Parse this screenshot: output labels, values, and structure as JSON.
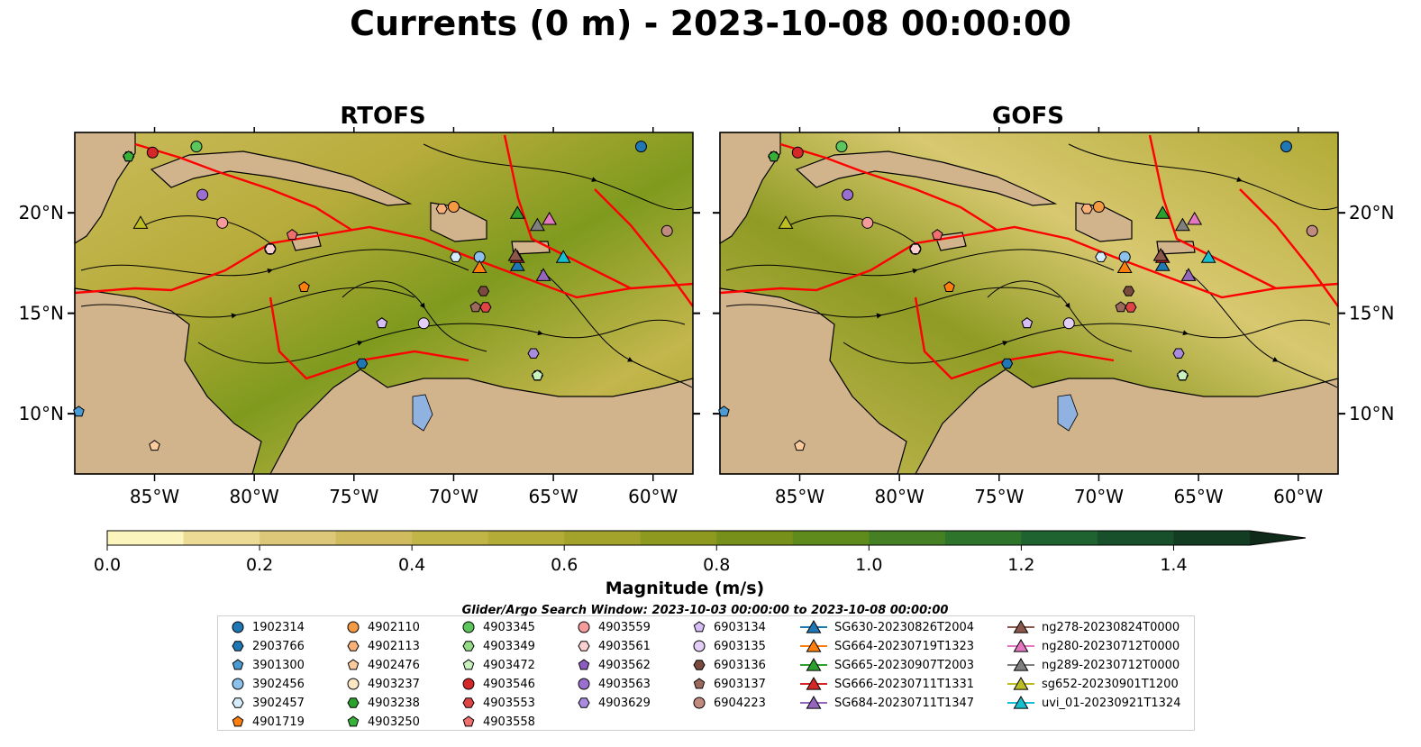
{
  "title": "Currents (0 m) - 2023-10-08 00:00:00",
  "panels": [
    {
      "title": "RTOFS"
    },
    {
      "title": "GOFS"
    }
  ],
  "axes": {
    "lon_ticks": [
      "85°W",
      "80°W",
      "75°W",
      "70°W",
      "65°W",
      "60°W"
    ],
    "lon_values": [
      -85,
      -80,
      -75,
      -70,
      -65,
      -60
    ],
    "lat_ticks": [
      "20°N",
      "15°N",
      "10°N"
    ],
    "lat_values": [
      20,
      15,
      10
    ],
    "lon_range": [
      -89,
      -58
    ],
    "lat_range": [
      7,
      24
    ]
  },
  "colorbar": {
    "label": "Magnitude (m/s)",
    "ticks": [
      "0.0",
      "0.2",
      "0.4",
      "0.6",
      "0.8",
      "1.0",
      "1.2",
      "1.4"
    ],
    "tick_values": [
      0.0,
      0.2,
      0.4,
      0.6,
      0.8,
      1.0,
      1.2,
      1.4
    ],
    "range": [
      0,
      1.5
    ],
    "extend": "max",
    "levels": 15,
    "colors": [
      "#fbf4bd",
      "#ecdb95",
      "#dcc878",
      "#d0bc5e",
      "#c2b547",
      "#b3ac37",
      "#a3a22a",
      "#8e9a1f",
      "#779019",
      "#5f8a1c",
      "#468024",
      "#2f742b",
      "#1e6330",
      "#17502a",
      "#133d22",
      "#0f2a18"
    ]
  },
  "search_window": "Glider/Argo Search Window: 2023-10-03 00:00:00 to 2023-10-08 00:00:00",
  "land_color": "#d2b48c",
  "track_color": "#ff0000",
  "legend": [
    {
      "label": "1902314",
      "marker": "circle",
      "color": "#1f77b4"
    },
    {
      "label": "2903766",
      "marker": "hexagon",
      "color": "#1f77b4"
    },
    {
      "label": "3901300",
      "marker": "pentagon",
      "color": "#4a9bd4"
    },
    {
      "label": "3902456",
      "marker": "circle",
      "color": "#8cc1ec"
    },
    {
      "label": "3902457",
      "marker": "hexagon",
      "color": "#d4ecfb"
    },
    {
      "label": "4901719",
      "marker": "pentagon",
      "color": "#ff7f0e"
    },
    {
      "label": "4902110",
      "marker": "circle",
      "color": "#f39a43"
    },
    {
      "label": "4902113",
      "marker": "hexagon",
      "color": "#f9b179"
    },
    {
      "label": "4902476",
      "marker": "pentagon",
      "color": "#fccb9d"
    },
    {
      "label": "4903237",
      "marker": "circle",
      "color": "#fde6c4"
    },
    {
      "label": "4903238",
      "marker": "hexagon",
      "color": "#2ca02c"
    },
    {
      "label": "4903250",
      "marker": "pentagon",
      "color": "#38b138"
    },
    {
      "label": "4903345",
      "marker": "circle",
      "color": "#5cc65c"
    },
    {
      "label": "4903349",
      "marker": "hexagon",
      "color": "#93db86"
    },
    {
      "label": "4903472",
      "marker": "pentagon",
      "color": "#c8f1bf"
    },
    {
      "label": "4903546",
      "marker": "circle",
      "color": "#d62728"
    },
    {
      "label": "4903553",
      "marker": "hexagon",
      "color": "#e04545"
    },
    {
      "label": "4903558",
      "marker": "pentagon",
      "color": "#f07070"
    },
    {
      "label": "4903559",
      "marker": "circle",
      "color": "#f59b9b"
    },
    {
      "label": "4903561",
      "marker": "hexagon",
      "color": "#fbd0d0"
    },
    {
      "label": "4903562",
      "marker": "pentagon",
      "color": "#8c5cbf"
    },
    {
      "label": "4903563",
      "marker": "circle",
      "color": "#9b6fd0"
    },
    {
      "label": "4903629",
      "marker": "hexagon",
      "color": "#a98be0"
    },
    {
      "label": "6903134",
      "marker": "pentagon",
      "color": "#d7bdf6"
    },
    {
      "label": "6903135",
      "marker": "circle",
      "color": "#e3cef7"
    },
    {
      "label": "6903136",
      "marker": "hexagon",
      "color": "#7a4a3e"
    },
    {
      "label": "6903137",
      "marker": "pentagon",
      "color": "#9c6a5c"
    },
    {
      "label": "6904223",
      "marker": "circle",
      "color": "#c08b7e"
    },
    {
      "label": "SG630-20230826T2004",
      "marker": "triangle",
      "color": "#1f77b4"
    },
    {
      "label": "SG664-20230719T1323",
      "marker": "triangle",
      "color": "#ff7f0e"
    },
    {
      "label": "SG665-20230907T2003",
      "marker": "triangle",
      "color": "#2ca02c"
    },
    {
      "label": "SG666-20230711T1331",
      "marker": "triangle",
      "color": "#d62728"
    },
    {
      "label": "SG684-20230711T1347",
      "marker": "triangle",
      "color": "#9467bd"
    },
    {
      "label": "ng278-20230824T0000",
      "marker": "triangle",
      "color": "#8c564b"
    },
    {
      "label": "ng280-20230712T0000",
      "marker": "triangle",
      "color": "#e377c2"
    },
    {
      "label": "ng289-20230712T0000",
      "marker": "triangle",
      "color": "#7f7f7f"
    },
    {
      "label": "sg652-20230901T1200",
      "marker": "triangle",
      "color": "#bcbd22"
    },
    {
      "label": "uvi_01-20230921T1324",
      "marker": "triangle",
      "color": "#17becf"
    }
  ],
  "platforms": [
    {
      "id": "1902314",
      "lon": -60.6,
      "lat": 23.3
    },
    {
      "id": "2903766",
      "lon": -74.6,
      "lat": 12.5
    },
    {
      "id": "3901300",
      "lon": -88.8,
      "lat": 10.1
    },
    {
      "id": "3902456",
      "lon": -68.7,
      "lat": 17.8
    },
    {
      "id": "3902457",
      "lon": -69.9,
      "lat": 17.8
    },
    {
      "id": "4901719",
      "lon": -77.5,
      "lat": 16.3
    },
    {
      "id": "4902110",
      "lon": -70.0,
      "lat": 20.3
    },
    {
      "id": "4902113",
      "lon": -70.6,
      "lat": 20.2
    },
    {
      "id": "4902476",
      "lon": -85.0,
      "lat": 8.4
    },
    {
      "id": "4903237",
      "lon": -79.2,
      "lat": 18.2
    },
    {
      "id": "4903238",
      "lon": -86.3,
      "lat": 22.8
    },
    {
      "id": "4903250",
      "lon": -86.3,
      "lat": 22.8
    },
    {
      "id": "4903345",
      "lon": -82.9,
      "lat": 23.3
    },
    {
      "id": "4903349",
      "lon": -65.8,
      "lat": 11.9
    },
    {
      "id": "4903472",
      "lon": -65.8,
      "lat": 11.9
    },
    {
      "id": "4903546",
      "lon": -85.1,
      "lat": 23.0
    },
    {
      "id": "4903553",
      "lon": -68.4,
      "lat": 15.3
    },
    {
      "id": "4903558",
      "lon": -78.1,
      "lat": 18.9
    },
    {
      "id": "4903559",
      "lon": -81.6,
      "lat": 19.5
    },
    {
      "id": "4903561",
      "lon": -79.2,
      "lat": 18.2
    },
    {
      "id": "4903562",
      "lon": -73.6,
      "lat": 14.5
    },
    {
      "id": "4903563",
      "lon": -82.6,
      "lat": 20.9
    },
    {
      "id": "4903629",
      "lon": -66.0,
      "lat": 13.0
    },
    {
      "id": "6903134",
      "lon": -73.6,
      "lat": 14.5
    },
    {
      "id": "6903135",
      "lon": -71.5,
      "lat": 14.5
    },
    {
      "id": "6903136",
      "lon": -68.5,
      "lat": 16.1
    },
    {
      "id": "6903137",
      "lon": -68.9,
      "lat": 15.3
    },
    {
      "id": "6904223",
      "lon": -59.3,
      "lat": 19.1
    }
  ],
  "gliders": [
    {
      "id": "SG630-20230826T2004",
      "lon": -66.8,
      "lat": 17.4
    },
    {
      "id": "SG664-20230719T1323",
      "lon": -68.7,
      "lat": 17.3
    },
    {
      "id": "SG665-20230907T2003",
      "lon": -66.8,
      "lat": 20.0
    },
    {
      "id": "SG666-20230711T1331",
      "lon": -66.8,
      "lat": 17.8
    },
    {
      "id": "SG684-20230711T1347",
      "lon": -65.5,
      "lat": 16.9
    },
    {
      "id": "ng278-20230824T0000",
      "lon": -66.9,
      "lat": 17.9
    },
    {
      "id": "ng280-20230712T0000",
      "lon": -65.2,
      "lat": 19.7
    },
    {
      "id": "ng289-20230712T0000",
      "lon": -65.8,
      "lat": 19.4
    },
    {
      "id": "sg652-20230901T1200",
      "lon": -85.7,
      "lat": 19.5
    },
    {
      "id": "uvi_01-20230921T1324",
      "lon": -64.5,
      "lat": 17.8
    }
  ]
}
